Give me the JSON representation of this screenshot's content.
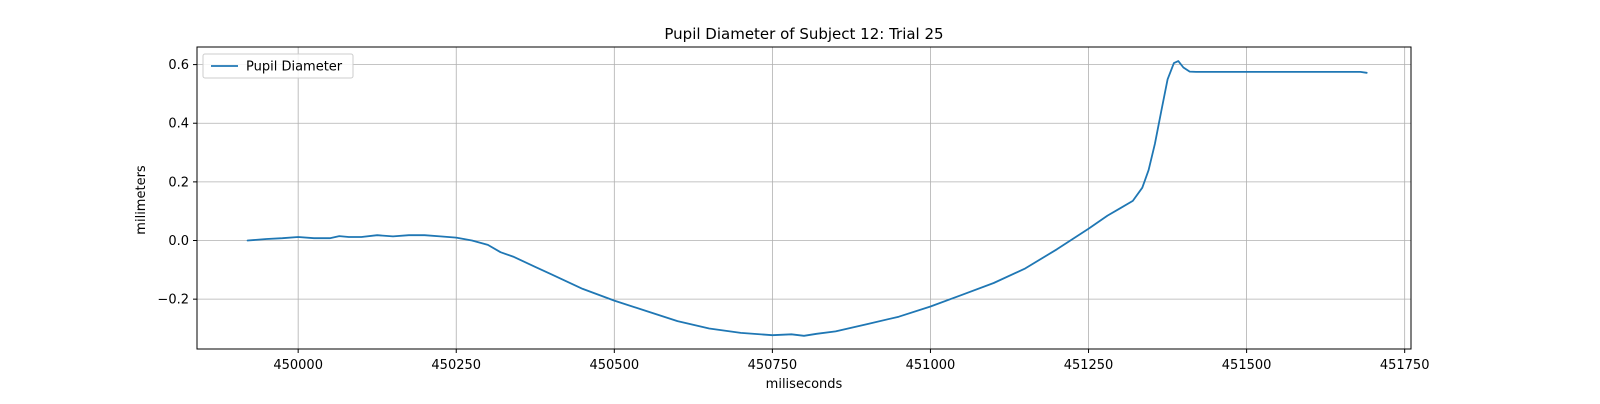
{
  "chart_data": {
    "type": "line",
    "title": "Pupil Diameter of Subject 12: Trial 25",
    "xlabel": "miliseconds",
    "ylabel": "milimeters",
    "xlim": [
      449840,
      451760
    ],
    "ylim": [
      -0.37,
      0.66
    ],
    "x_ticks": [
      450000,
      450250,
      450500,
      450750,
      451000,
      451250,
      451500,
      451750
    ],
    "y_ticks": [
      -0.2,
      0.0,
      0.2,
      0.4,
      0.6
    ],
    "x_tick_labels": [
      "450000",
      "450250",
      "450500",
      "450750",
      "451000",
      "451250",
      "451500",
      "451750"
    ],
    "y_tick_labels": [
      "−0.2",
      "0.0",
      "0.2",
      "0.4",
      "0.6"
    ],
    "grid": true,
    "legend_position": "upper-left",
    "series": [
      {
        "name": "Pupil Diameter",
        "color": "#1f77b4",
        "x": [
          449920,
          449950,
          449975,
          450000,
          450025,
          450050,
          450065,
          450080,
          450100,
          450125,
          450150,
          450175,
          450200,
          450225,
          450250,
          450275,
          450300,
          450320,
          450340,
          450375,
          450400,
          450450,
          450500,
          450550,
          450600,
          450650,
          450700,
          450750,
          450780,
          450800,
          450820,
          450850,
          450900,
          450950,
          451000,
          451050,
          451100,
          451150,
          451200,
          451250,
          451280,
          451300,
          451320,
          451335,
          451345,
          451355,
          451365,
          451375,
          451385,
          451392,
          451400,
          451410,
          451420,
          451450,
          451500,
          451550,
          451600,
          451650,
          451680,
          451690
        ],
        "y": [
          0.0,
          0.005,
          0.008,
          0.012,
          0.008,
          0.008,
          0.015,
          0.012,
          0.012,
          0.018,
          0.014,
          0.018,
          0.018,
          0.014,
          0.01,
          0.0,
          -0.015,
          -0.04,
          -0.055,
          -0.09,
          -0.115,
          -0.165,
          -0.205,
          -0.24,
          -0.275,
          -0.3,
          -0.315,
          -0.323,
          -0.32,
          -0.325,
          -0.318,
          -0.31,
          -0.285,
          -0.26,
          -0.225,
          -0.185,
          -0.145,
          -0.095,
          -0.03,
          0.04,
          0.085,
          0.11,
          0.135,
          0.18,
          0.24,
          0.33,
          0.44,
          0.55,
          0.605,
          0.612,
          0.59,
          0.576,
          0.575,
          0.575,
          0.575,
          0.575,
          0.575,
          0.575,
          0.575,
          0.572
        ]
      }
    ]
  }
}
